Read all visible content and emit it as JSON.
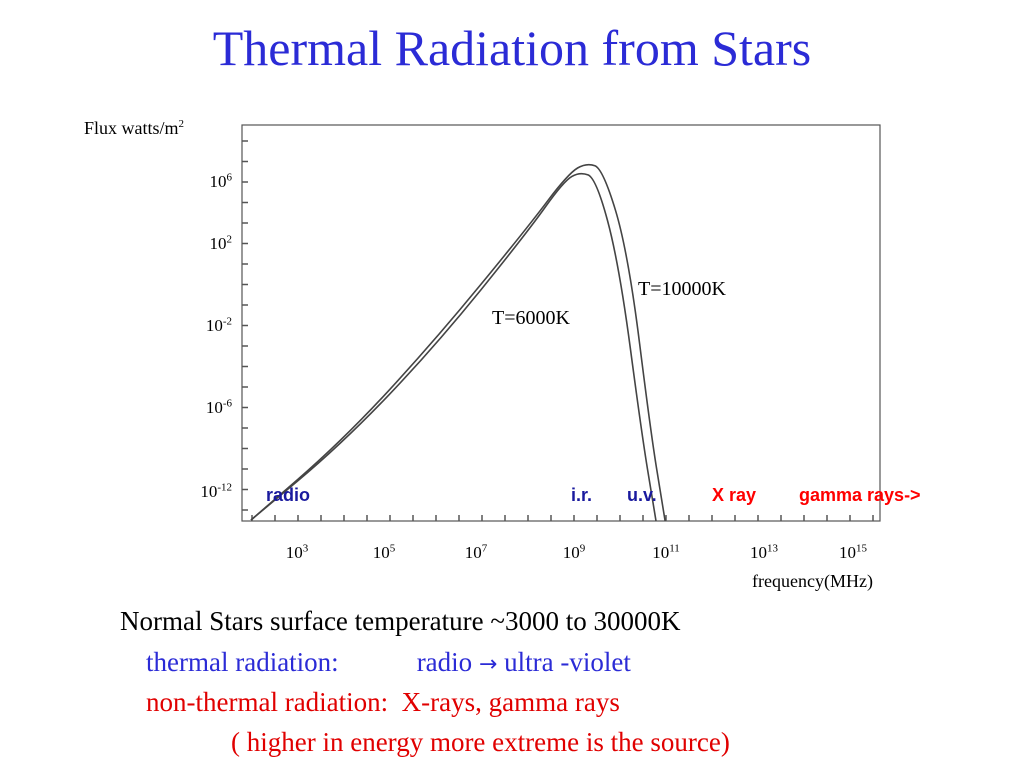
{
  "title": "Thermal Radiation from Stars",
  "colors": {
    "title": "#2b2bd6",
    "thermal": "#2b2bd6",
    "nonthermal": "#e00000",
    "band_blue": "#1a1a9e",
    "band_red": "#ff0000",
    "curve": "#444444"
  },
  "chart_data": {
    "type": "line",
    "ylabel": "Flux watts/m",
    "ylabel_sup": "2",
    "xlabel": "frequency(MHz)",
    "x_scale": "log",
    "y_scale": "log",
    "x_ticks": [
      {
        "base": "10",
        "exp": "3"
      },
      {
        "base": "10",
        "exp": "5"
      },
      {
        "base": "10",
        "exp": "7"
      },
      {
        "base": "10",
        "exp": "9"
      },
      {
        "base": "10",
        "exp": "11"
      },
      {
        "base": "10",
        "exp": "13"
      },
      {
        "base": "10",
        "exp": "15"
      }
    ],
    "y_ticks": [
      {
        "base": "10",
        "exp": "6"
      },
      {
        "base": "10",
        "exp": "2"
      },
      {
        "base": "10",
        "exp": "-2"
      },
      {
        "base": "10",
        "exp": "-6"
      },
      {
        "base": "10",
        "exp": "-12"
      }
    ],
    "series": [
      {
        "name": "T=6000K",
        "x_log10": [
          2,
          4,
          6,
          8,
          8.8,
          9.15,
          9.5,
          10.0,
          10.5,
          10.75,
          10.9
        ],
        "y_log10": [
          -14,
          -8.5,
          -3,
          2.6,
          6.0,
          6.6,
          6.2,
          1.0,
          -8.0,
          -13.0,
          -16.0
        ]
      },
      {
        "name": "T=10000K",
        "x_log10": [
          2,
          4,
          6,
          8,
          8.9,
          9.3,
          9.65,
          10.2,
          10.7,
          10.95,
          11.1
        ],
        "y_log10": [
          -14,
          -8.3,
          -2.7,
          2.9,
          6.5,
          7.2,
          6.8,
          1.5,
          -8.0,
          -13.0,
          -16.0
        ]
      }
    ],
    "annotations": [
      "T=10000K",
      "T=6000K"
    ],
    "bands": [
      {
        "label": "radio",
        "color_key": "band_blue"
      },
      {
        "label": "i.r.",
        "color_key": "band_blue"
      },
      {
        "label": "u.v.",
        "color_key": "band_blue"
      },
      {
        "label": "X ray",
        "color_key": "band_red"
      },
      {
        "label": "gamma rays->",
        "color_key": "band_red"
      }
    ]
  },
  "text": {
    "line1": "Normal Stars surface temperature ~3000 to 30000K",
    "thermal_label": "thermal radiation:",
    "thermal_from": "radio",
    "thermal_to": "ultra -violet",
    "nonthermal_label": "non-thermal radiation:",
    "nonthermal_value": "X-rays, gamma rays",
    "note": "( higher in energy more extreme is the source)"
  }
}
